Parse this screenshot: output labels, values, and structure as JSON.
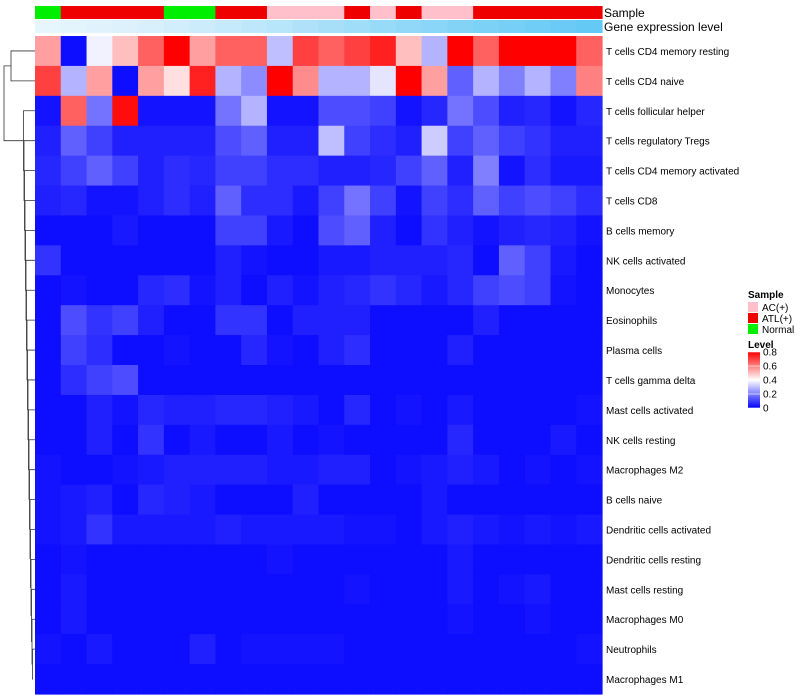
{
  "chart_data": {
    "type": "heatmap",
    "annotation_rows": [
      {
        "name": "Sample",
        "values": [
          "Normal",
          "ATL(+)",
          "ATL(+)",
          "ATL(+)",
          "ATL(+)",
          "Normal",
          "Normal",
          "ATL(+)",
          "ATL(+)",
          "AC(+)",
          "AC(+)",
          "AC(+)",
          "ATL(+)",
          "AC(+)",
          "ATL(+)",
          "AC(+)",
          "AC(+)",
          "ATL(+)",
          "ATL(+)",
          "ATL(+)",
          "ATL(+)",
          "ATL(+)"
        ]
      },
      {
        "name": "Gene expression level",
        "values": [
          0.02,
          0.04,
          0.07,
          0.1,
          0.13,
          0.17,
          0.21,
          0.26,
          0.31,
          0.36,
          0.41,
          0.47,
          0.52,
          0.57,
          0.62,
          0.67,
          0.72,
          0.77,
          0.81,
          0.85,
          0.89,
          0.93
        ]
      }
    ],
    "rows": [
      "T cells CD4 memory resting",
      "T cells CD4 naive",
      "T cells follicular helper",
      "T cells regulatory  Tregs",
      "T cells CD4 memory activated",
      "T cells CD8",
      "B cells memory",
      "NK cells activated",
      "Monocytes",
      "Eosinophils",
      "Plasma cells",
      "T cells gamma delta",
      "Mast cells activated",
      "NK cells resting",
      "Macrophages M2",
      "B cells naive",
      "Dendritic cells activated",
      "Dendritic cells resting",
      "Mast cells resting",
      "Macrophages M0",
      "Neutrophils",
      "Macrophages M1"
    ],
    "values": [
      [
        0.55,
        0.02,
        0.38,
        0.5,
        0.65,
        0.8,
        0.55,
        0.65,
        0.65,
        0.3,
        0.7,
        0.65,
        0.7,
        0.75,
        0.5,
        0.28,
        0.8,
        0.65,
        0.8,
        0.8,
        0.8,
        0.65
      ],
      [
        0.7,
        0.28,
        0.55,
        0.02,
        0.55,
        0.45,
        0.75,
        0.28,
        0.22,
        0.8,
        0.58,
        0.28,
        0.28,
        0.36,
        0.8,
        0.55,
        0.15,
        0.28,
        0.2,
        0.28,
        0.2,
        0.6
      ],
      [
        0.03,
        0.65,
        0.18,
        0.78,
        0.03,
        0.03,
        0.03,
        0.18,
        0.28,
        0.03,
        0.03,
        0.12,
        0.12,
        0.1,
        0.03,
        0.06,
        0.18,
        0.12,
        0.05,
        0.06,
        0.03,
        0.06
      ],
      [
        0.05,
        0.15,
        0.1,
        0.05,
        0.05,
        0.05,
        0.05,
        0.12,
        0.15,
        0.05,
        0.05,
        0.3,
        0.1,
        0.07,
        0.05,
        0.32,
        0.1,
        0.15,
        0.1,
        0.08,
        0.05,
        0.05
      ],
      [
        0.06,
        0.1,
        0.15,
        0.1,
        0.05,
        0.07,
        0.06,
        0.1,
        0.1,
        0.07,
        0.07,
        0.05,
        0.05,
        0.06,
        0.1,
        0.15,
        0.05,
        0.2,
        0.03,
        0.07,
        0.04,
        0.04
      ],
      [
        0.05,
        0.06,
        0.03,
        0.03,
        0.05,
        0.07,
        0.05,
        0.15,
        0.07,
        0.07,
        0.04,
        0.1,
        0.18,
        0.1,
        0.03,
        0.1,
        0.07,
        0.15,
        0.1,
        0.12,
        0.1,
        0.07
      ],
      [
        0.02,
        0.02,
        0.02,
        0.04,
        0.02,
        0.02,
        0.02,
        0.1,
        0.1,
        0.04,
        0.02,
        0.12,
        0.15,
        0.05,
        0.02,
        0.08,
        0.05,
        0.03,
        0.05,
        0.06,
        0.05,
        0.03
      ],
      [
        0.08,
        0.02,
        0.02,
        0.02,
        0.02,
        0.02,
        0.02,
        0.05,
        0.03,
        0.02,
        0.02,
        0.04,
        0.04,
        0.05,
        0.05,
        0.05,
        0.06,
        0.02,
        0.15,
        0.1,
        0.04,
        0.02
      ],
      [
        0.02,
        0.03,
        0.02,
        0.02,
        0.06,
        0.07,
        0.03,
        0.05,
        0.02,
        0.05,
        0.03,
        0.05,
        0.06,
        0.08,
        0.06,
        0.04,
        0.06,
        0.1,
        0.12,
        0.1,
        0.03,
        0.02
      ],
      [
        0.02,
        0.12,
        0.08,
        0.1,
        0.05,
        0.02,
        0.02,
        0.08,
        0.08,
        0.02,
        0.05,
        0.05,
        0.05,
        0.02,
        0.02,
        0.02,
        0.02,
        0.05,
        0.02,
        0.02,
        0.02,
        0.02
      ],
      [
        0.02,
        0.1,
        0.07,
        0.02,
        0.02,
        0.03,
        0.02,
        0.02,
        0.06,
        0.03,
        0.02,
        0.05,
        0.07,
        0.02,
        0.02,
        0.02,
        0.05,
        0.02,
        0.02,
        0.02,
        0.02,
        0.02
      ],
      [
        0.02,
        0.07,
        0.1,
        0.12,
        0.02,
        0.02,
        0.02,
        0.02,
        0.02,
        0.02,
        0.02,
        0.02,
        0.02,
        0.02,
        0.02,
        0.02,
        0.02,
        0.02,
        0.02,
        0.02,
        0.02,
        0.02
      ],
      [
        0.02,
        0.02,
        0.05,
        0.03,
        0.06,
        0.05,
        0.05,
        0.06,
        0.06,
        0.05,
        0.04,
        0.02,
        0.06,
        0.02,
        0.03,
        0.02,
        0.04,
        0.02,
        0.02,
        0.02,
        0.02,
        0.03
      ],
      [
        0.02,
        0.02,
        0.05,
        0.02,
        0.08,
        0.02,
        0.04,
        0.02,
        0.02,
        0.04,
        0.02,
        0.03,
        0.02,
        0.02,
        0.02,
        0.02,
        0.06,
        0.02,
        0.02,
        0.02,
        0.04,
        0.02
      ],
      [
        0.03,
        0.02,
        0.02,
        0.03,
        0.04,
        0.05,
        0.05,
        0.05,
        0.05,
        0.04,
        0.04,
        0.05,
        0.05,
        0.02,
        0.03,
        0.04,
        0.05,
        0.04,
        0.02,
        0.03,
        0.02,
        0.03
      ],
      [
        0.03,
        0.04,
        0.05,
        0.02,
        0.06,
        0.05,
        0.04,
        0.02,
        0.02,
        0.02,
        0.05,
        0.02,
        0.02,
        0.02,
        0.02,
        0.04,
        0.02,
        0.02,
        0.02,
        0.02,
        0.02,
        0.02
      ],
      [
        0.03,
        0.04,
        0.08,
        0.04,
        0.04,
        0.04,
        0.04,
        0.05,
        0.04,
        0.04,
        0.04,
        0.04,
        0.03,
        0.03,
        0.02,
        0.04,
        0.05,
        0.04,
        0.03,
        0.04,
        0.03,
        0.04
      ],
      [
        0.02,
        0.03,
        0.02,
        0.02,
        0.02,
        0.02,
        0.02,
        0.02,
        0.02,
        0.03,
        0.02,
        0.02,
        0.02,
        0.02,
        0.02,
        0.02,
        0.04,
        0.02,
        0.02,
        0.02,
        0.02,
        0.02
      ],
      [
        0.02,
        0.04,
        0.02,
        0.02,
        0.02,
        0.02,
        0.02,
        0.02,
        0.02,
        0.02,
        0.02,
        0.02,
        0.03,
        0.02,
        0.02,
        0.02,
        0.04,
        0.02,
        0.03,
        0.04,
        0.02,
        0.02
      ],
      [
        0.02,
        0.04,
        0.02,
        0.02,
        0.02,
        0.02,
        0.02,
        0.02,
        0.02,
        0.02,
        0.02,
        0.02,
        0.02,
        0.02,
        0.02,
        0.02,
        0.03,
        0.02,
        0.02,
        0.03,
        0.02,
        0.02
      ],
      [
        0.03,
        0.02,
        0.04,
        0.02,
        0.02,
        0.02,
        0.05,
        0.02,
        0.03,
        0.03,
        0.03,
        0.03,
        0.02,
        0.02,
        0.02,
        0.02,
        0.02,
        0.02,
        0.02,
        0.02,
        0.02,
        0.03
      ],
      [
        0.02,
        0.02,
        0.02,
        0.02,
        0.02,
        0.02,
        0.02,
        0.02,
        0.02,
        0.02,
        0.02,
        0.02,
        0.02,
        0.02,
        0.02,
        0.02,
        0.02,
        0.02,
        0.02,
        0.02,
        0.02,
        0.02
      ]
    ],
    "color_scale": {
      "min": 0,
      "mid": 0.4,
      "max": 0.8,
      "low_color": "#0000ff",
      "mid_color": "#ffffff",
      "high_color": "#ff0000"
    },
    "legend_sample": {
      "title": "Sample",
      "entries": [
        {
          "label": "AC(+)",
          "color": "#ffc0cb"
        },
        {
          "label": "ATL(+)",
          "color": "#ee0000"
        },
        {
          "label": "Normal",
          "color": "#00ee00"
        }
      ]
    },
    "legend_level": {
      "title": "Level",
      "ticks": [
        0.8,
        0.6,
        0.4,
        0.2,
        0
      ],
      "tick_labels": [
        "0.8",
        "0.6",
        "0.4",
        "0.2",
        "0"
      ]
    },
    "annotation_colors": {
      "expr_low": "#eaf6fd",
      "expr_high": "#5bc6f5"
    },
    "legend": "right"
  }
}
